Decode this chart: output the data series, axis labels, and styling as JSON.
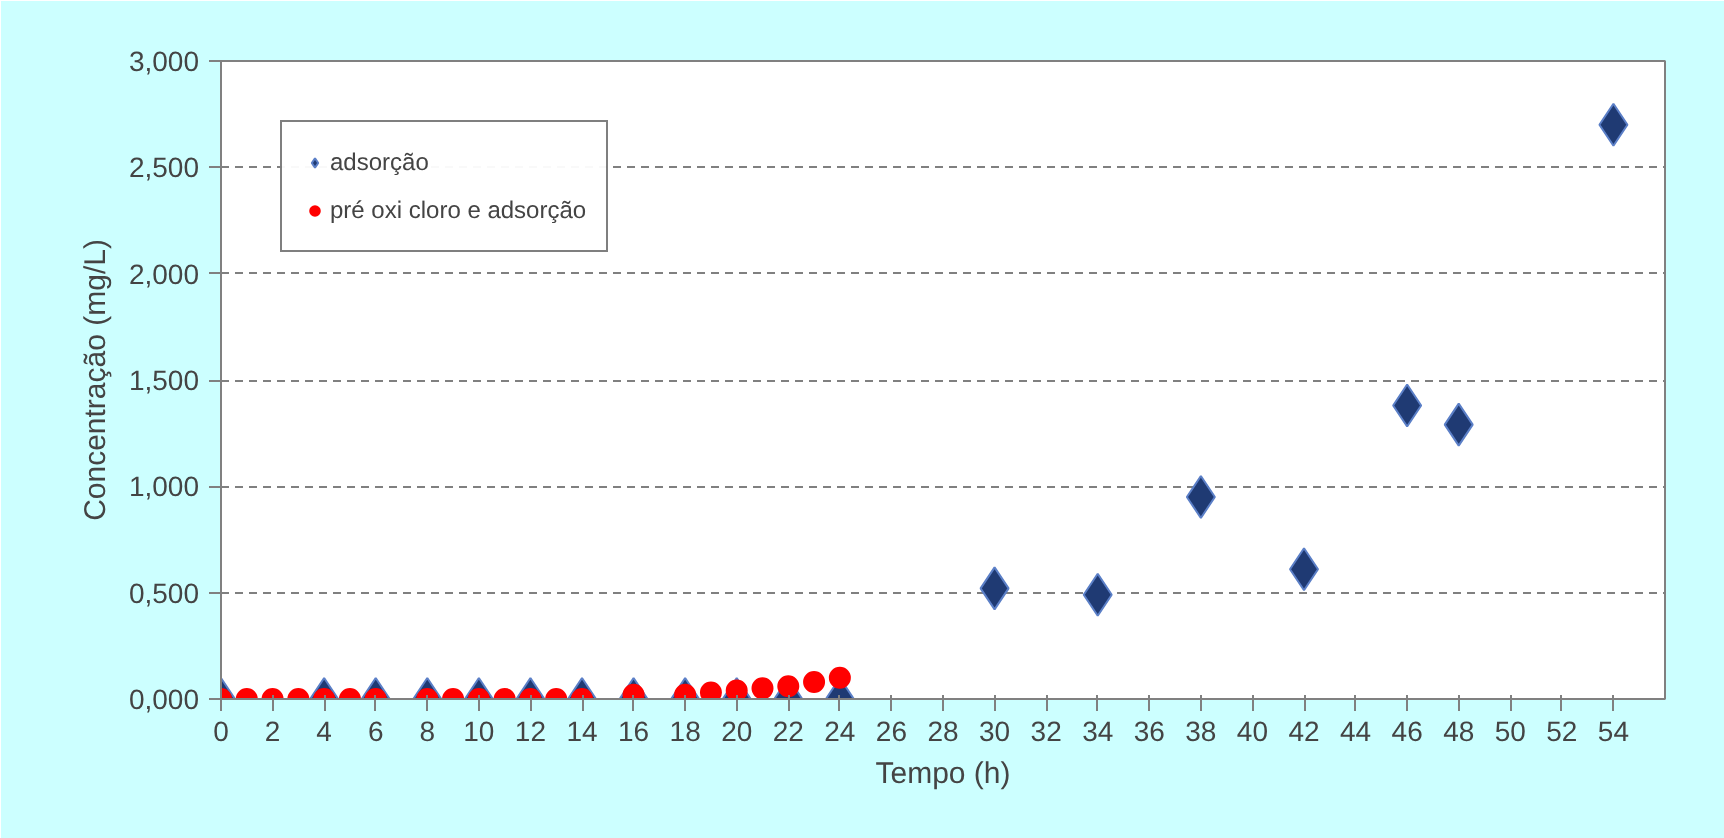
{
  "chart_data": {
    "type": "scatter",
    "xlabel": "Tempo (h)",
    "ylabel": "Concentração (mg/L)",
    "xlim": [
      0,
      56
    ],
    "xticks": [
      0,
      2,
      4,
      6,
      8,
      10,
      12,
      14,
      16,
      18,
      20,
      22,
      24,
      26,
      28,
      30,
      32,
      34,
      36,
      38,
      40,
      42,
      44,
      46,
      48,
      50,
      52,
      54
    ],
    "ylim": [
      0,
      3
    ],
    "yticks": [
      {
        "value": 0,
        "label": "0,000"
      },
      {
        "value": 0.5,
        "label": "0,500"
      },
      {
        "value": 1,
        "label": "1,000"
      },
      {
        "value": 1.5,
        "label": "1,500"
      },
      {
        "value": 2,
        "label": "2,000"
      },
      {
        "value": 2.5,
        "label": "2,500"
      },
      {
        "value": 3,
        "label": "3,000"
      }
    ],
    "grid": "y",
    "legend": "top left",
    "series": [
      {
        "name": "adsorção",
        "color": "#1f3a73",
        "marker": "diamond",
        "x": [
          0,
          4,
          6,
          8,
          10,
          12,
          14,
          16,
          18,
          20,
          22,
          24,
          30,
          34,
          38,
          42,
          46,
          48,
          54
        ],
        "values": [
          0,
          0,
          0,
          0,
          0,
          0,
          0,
          0,
          0,
          0,
          0,
          0,
          0.52,
          0.49,
          0.95,
          0.61,
          1.38,
          1.29,
          2.7
        ]
      },
      {
        "name": "pré oxi cloro e adsorção",
        "color": "#ff0000",
        "marker": "circle",
        "x": [
          0,
          1,
          2,
          3,
          4,
          5,
          6,
          8,
          9,
          10,
          11,
          12,
          13,
          14,
          16,
          18,
          19,
          20,
          21,
          22,
          23,
          24
        ],
        "values": [
          0,
          0,
          0,
          0,
          0,
          0,
          0,
          0,
          0,
          0,
          0,
          0,
          0,
          0,
          0.02,
          0.02,
          0.03,
          0.04,
          0.05,
          0.06,
          0.08,
          0.1
        ]
      }
    ]
  }
}
